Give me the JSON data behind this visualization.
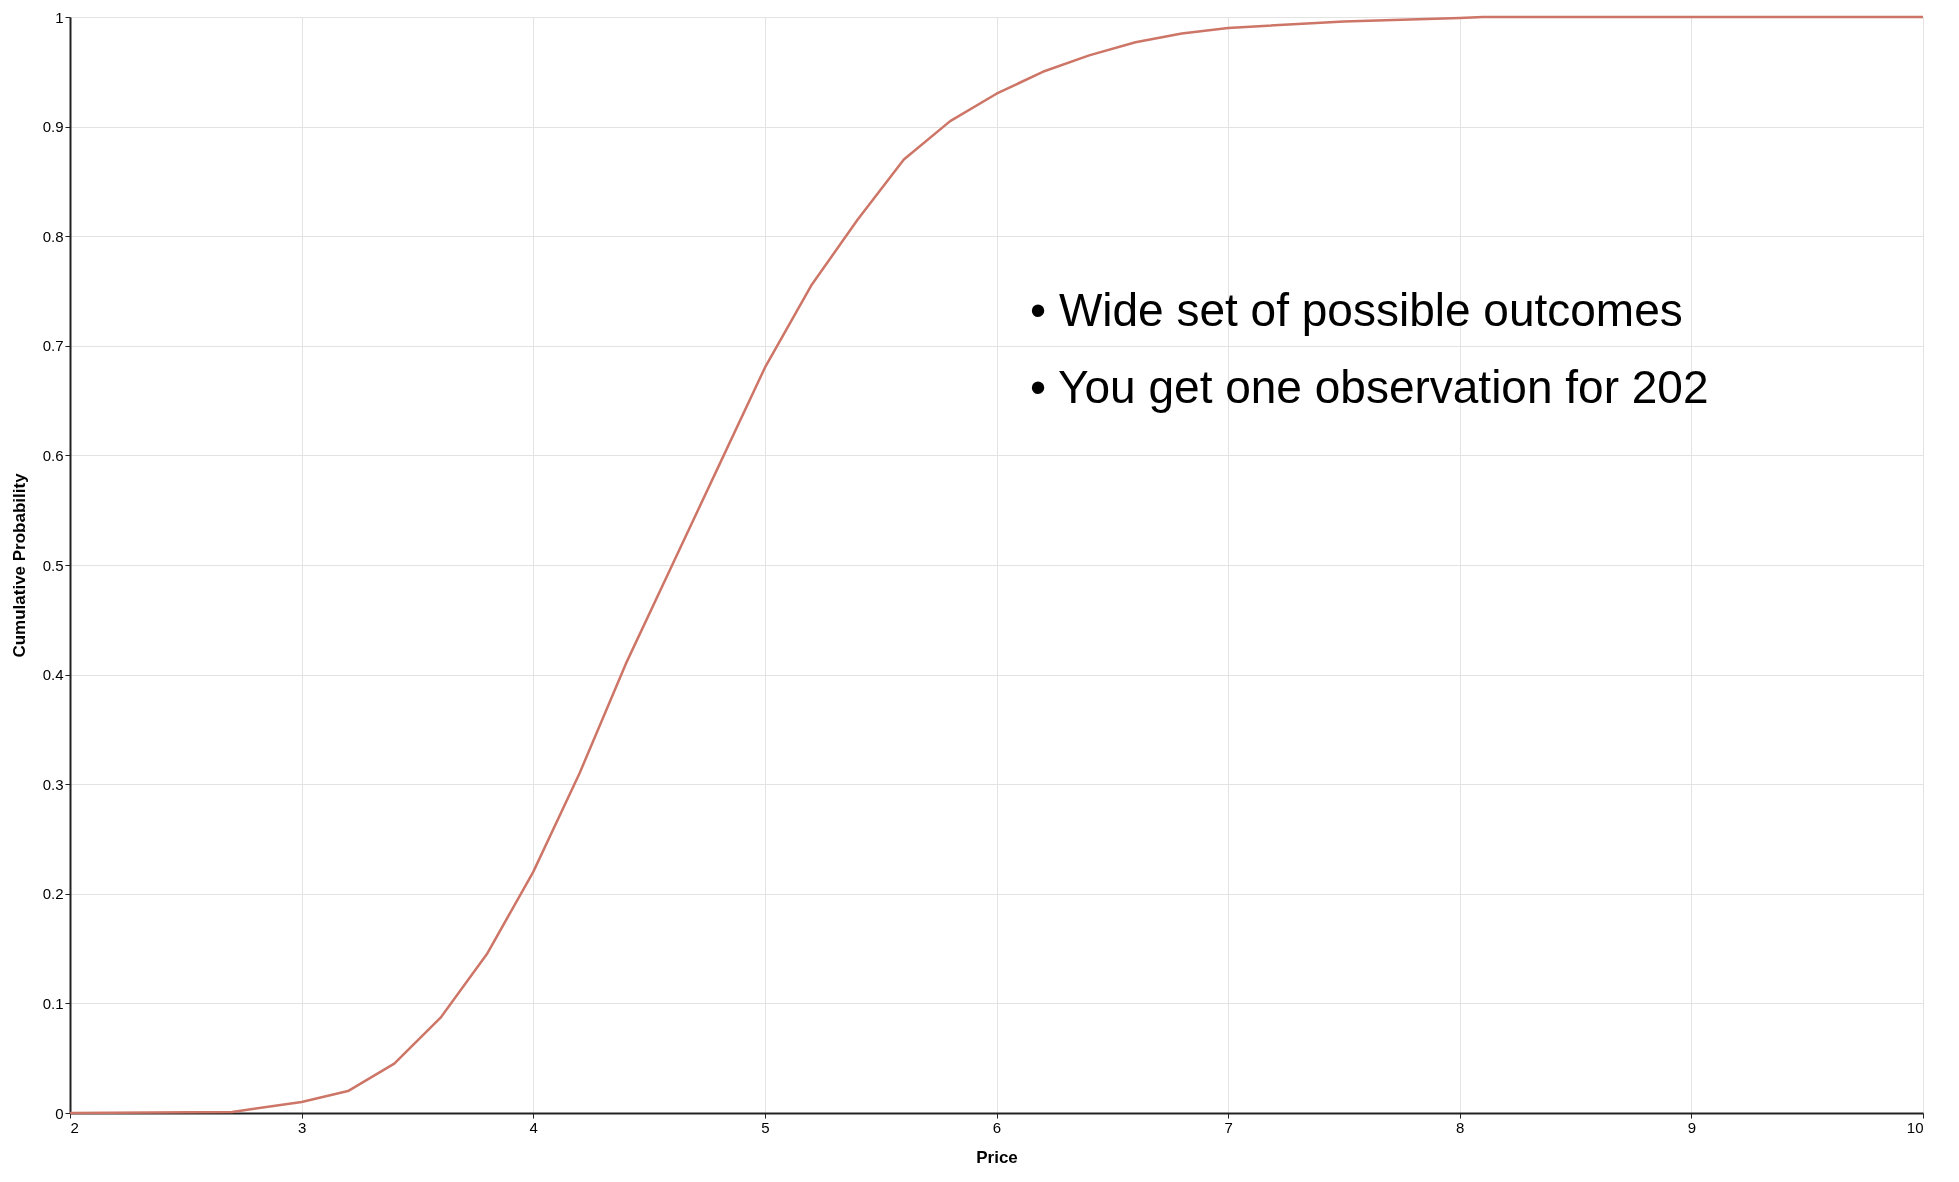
{
  "chart_data": {
    "type": "line",
    "xlabel": "Price",
    "ylabel": "Cumulative Probability",
    "x": [
      2,
      2.7,
      3.0,
      3.2,
      3.4,
      3.6,
      3.8,
      4.0,
      4.2,
      4.4,
      4.6,
      4.8,
      5.0,
      5.2,
      5.4,
      5.6,
      5.8,
      6.0,
      6.2,
      6.4,
      6.6,
      6.8,
      7.0,
      7.5,
      8.0,
      8.1,
      10
    ],
    "series": [
      {
        "color": "#cd7566",
        "values": [
          0,
          0.001,
          0.01,
          0.02,
          0.045,
          0.087,
          0.145,
          0.22,
          0.31,
          0.41,
          0.5,
          0.59,
          0.68,
          0.755,
          0.815,
          0.87,
          0.905,
          0.93,
          0.95,
          0.965,
          0.977,
          0.985,
          0.99,
          0.996,
          0.999,
          1,
          1
        ]
      }
    ],
    "xlim": [
      2,
      10
    ],
    "xticks": [
      2,
      3,
      4,
      5,
      6,
      7,
      8,
      9,
      10
    ],
    "ylim": [
      0,
      1
    ],
    "yticks": [
      0,
      0.1,
      0.2,
      0.3,
      0.4,
      0.5,
      0.6,
      0.7,
      0.8,
      0.9,
      1
    ],
    "grid": true,
    "marker": "none",
    "line_style": "solid",
    "annotations": [
      "•  Wide set of possible outcomes",
      "•  You get one observation for 202"
    ]
  }
}
